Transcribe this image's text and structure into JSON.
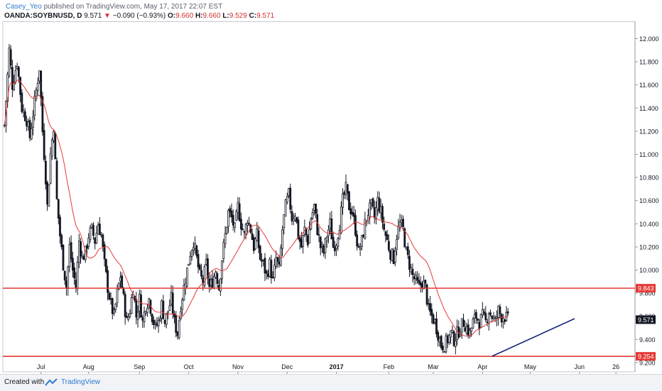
{
  "header": {
    "author": "Casey_Yeo",
    "published_text": "published on TradingView.com, May 17, 2017 22:07 EST",
    "symbol": "OANDA:SOYBNUSD, D",
    "price": "9.571",
    "change_arrow": "▼",
    "change": "−0.090 (−0.93%)",
    "o_label": "O:",
    "o_value": "9.660",
    "h_label": "H:",
    "h_value": "9.660",
    "l_label": "L:",
    "l_value": "9.529",
    "c_label": "C:",
    "c_value": "9.571"
  },
  "footer": {
    "created_with": "Created with",
    "brand": "TradingView"
  },
  "colors": {
    "candle": "#131722",
    "ma": "#e53935",
    "level": "#e53935",
    "trendline": "#1a237e",
    "last_price_bg": "#131722",
    "level_label_bg": "#e53935"
  },
  "chart_data": {
    "type": "candlestick",
    "title": "OANDA:SOYBNUSD, D",
    "ylim": [
      9.12,
      12.15
    ],
    "y_ticks": [
      "9.200",
      "9.400",
      "9.600",
      "9.800",
      "10.000",
      "10.200",
      "10.400",
      "10.600",
      "10.800",
      "11.000",
      "11.200",
      "11.400",
      "11.600",
      "11.800",
      "12.000"
    ],
    "x_ticks": [
      "Jul",
      "Aug",
      "Sep",
      "Oct",
      "Nov",
      "Dec",
      "2017",
      "Feb",
      "Mar",
      "Apr",
      "May",
      "Jun",
      "26"
    ],
    "x_tick_days": [
      12,
      42,
      74,
      105,
      136,
      167,
      198,
      231,
      259,
      290,
      320,
      351,
      374
    ],
    "xlim": [
      -12,
      386
    ],
    "horizontal_levels": [
      {
        "value": 9.843,
        "label": "9.843"
      },
      {
        "value": 9.254,
        "label": "9.254"
      }
    ],
    "last_price": {
      "value": 9.571,
      "label": "9.571"
    },
    "trendline": {
      "from": {
        "day": 296,
        "price": 9.255
      },
      "to": {
        "day": 348,
        "price": 9.58
      }
    },
    "close_path": [
      [
        -11,
        11.25
      ],
      [
        -8,
        11.9
      ],
      [
        -6,
        11.6
      ],
      [
        -3,
        11.8
      ],
      [
        0,
        11.4
      ],
      [
        3,
        11.3
      ],
      [
        5,
        11.15
      ],
      [
        7,
        11.35
      ],
      [
        9,
        11.55
      ],
      [
        11,
        11.75
      ],
      [
        13,
        11.2
      ],
      [
        15,
        10.8
      ],
      [
        16,
        10.55
      ],
      [
        18,
        11.0
      ],
      [
        20,
        11.25
      ],
      [
        22,
        10.6
      ],
      [
        24,
        10.3
      ],
      [
        26,
        10.05
      ],
      [
        28,
        9.85
      ],
      [
        30,
        10.2
      ],
      [
        32,
        10.0
      ],
      [
        34,
        9.85
      ],
      [
        36,
        10.25
      ],
      [
        38,
        10.1
      ],
      [
        40,
        10.15
      ],
      [
        42,
        10.3
      ],
      [
        44,
        10.35
      ],
      [
        46,
        10.25
      ],
      [
        48,
        10.4
      ],
      [
        50,
        10.3
      ],
      [
        52,
        10.05
      ],
      [
        54,
        9.85
      ],
      [
        56,
        9.7
      ],
      [
        58,
        9.6
      ],
      [
        60,
        9.8
      ],
      [
        62,
        9.95
      ],
      [
        64,
        9.75
      ],
      [
        66,
        9.55
      ],
      [
        68,
        9.65
      ],
      [
        70,
        9.85
      ],
      [
        72,
        9.6
      ],
      [
        74,
        9.75
      ],
      [
        76,
        9.55
      ],
      [
        78,
        9.7
      ],
      [
        80,
        9.75
      ],
      [
        82,
        9.6
      ],
      [
        84,
        9.5
      ],
      [
        86,
        9.55
      ],
      [
        88,
        9.7
      ],
      [
        90,
        9.55
      ],
      [
        92,
        9.65
      ],
      [
        94,
        9.75
      ],
      [
        96,
        9.55
      ],
      [
        98,
        9.45
      ],
      [
        100,
        9.7
      ],
      [
        102,
        9.85
      ],
      [
        104,
        10.0
      ],
      [
        106,
        10.15
      ],
      [
        108,
        10.25
      ],
      [
        110,
        10.1
      ],
      [
        112,
        9.95
      ],
      [
        114,
        9.9
      ],
      [
        116,
        10.05
      ],
      [
        118,
        9.85
      ],
      [
        120,
        9.9
      ],
      [
        122,
        10.0
      ],
      [
        124,
        9.85
      ],
      [
        126,
        10.1
      ],
      [
        128,
        10.3
      ],
      [
        130,
        10.5
      ],
      [
        132,
        10.45
      ],
      [
        134,
        10.35
      ],
      [
        136,
        10.55
      ],
      [
        138,
        10.4
      ],
      [
        140,
        10.3
      ],
      [
        142,
        10.45
      ],
      [
        144,
        10.35
      ],
      [
        146,
        10.2
      ],
      [
        148,
        10.3
      ],
      [
        150,
        10.1
      ],
      [
        152,
        10.05
      ],
      [
        154,
        9.95
      ],
      [
        156,
        10.05
      ],
      [
        158,
        9.9
      ],
      [
        160,
        10.1
      ],
      [
        162,
        10.0
      ],
      [
        164,
        10.35
      ],
      [
        166,
        10.55
      ],
      [
        168,
        10.65
      ],
      [
        170,
        10.45
      ],
      [
        172,
        10.5
      ],
      [
        174,
        10.3
      ],
      [
        176,
        10.2
      ],
      [
        178,
        10.35
      ],
      [
        180,
        10.25
      ],
      [
        182,
        10.45
      ],
      [
        184,
        10.55
      ],
      [
        186,
        10.35
      ],
      [
        188,
        10.2
      ],
      [
        190,
        10.15
      ],
      [
        192,
        10.3
      ],
      [
        194,
        10.4
      ],
      [
        196,
        10.2
      ],
      [
        198,
        10.25
      ],
      [
        200,
        10.4
      ],
      [
        202,
        10.6
      ],
      [
        204,
        10.7
      ],
      [
        206,
        10.55
      ],
      [
        208,
        10.5
      ],
      [
        210,
        10.35
      ],
      [
        212,
        10.15
      ],
      [
        214,
        10.25
      ],
      [
        216,
        10.4
      ],
      [
        218,
        10.5
      ],
      [
        220,
        10.55
      ],
      [
        222,
        10.45
      ],
      [
        224,
        10.6
      ],
      [
        226,
        10.5
      ],
      [
        228,
        10.35
      ],
      [
        230,
        10.25
      ],
      [
        232,
        10.15
      ],
      [
        234,
        10.1
      ],
      [
        236,
        10.3
      ],
      [
        238,
        10.4
      ],
      [
        240,
        10.35
      ],
      [
        242,
        10.15
      ],
      [
        244,
        10.05
      ],
      [
        246,
        9.95
      ],
      [
        248,
        9.9
      ],
      [
        250,
        9.85
      ],
      [
        252,
        9.9
      ],
      [
        254,
        9.85
      ],
      [
        256,
        9.65
      ],
      [
        258,
        9.6
      ],
      [
        260,
        9.55
      ],
      [
        262,
        9.45
      ],
      [
        264,
        9.35
      ],
      [
        266,
        9.35
      ],
      [
        268,
        9.4
      ],
      [
        270,
        9.45
      ],
      [
        272,
        9.4
      ],
      [
        274,
        9.45
      ],
      [
        276,
        9.5
      ],
      [
        278,
        9.55
      ],
      [
        280,
        9.5
      ],
      [
        282,
        9.45
      ],
      [
        284,
        9.55
      ],
      [
        286,
        9.6
      ],
      [
        288,
        9.55
      ],
      [
        290,
        9.6
      ],
      [
        292,
        9.55
      ],
      [
        294,
        9.65
      ],
      [
        296,
        9.6
      ],
      [
        298,
        9.55
      ],
      [
        300,
        9.65
      ],
      [
        302,
        9.6
      ],
      [
        304,
        9.6
      ],
      [
        306,
        9.57
      ]
    ]
  }
}
